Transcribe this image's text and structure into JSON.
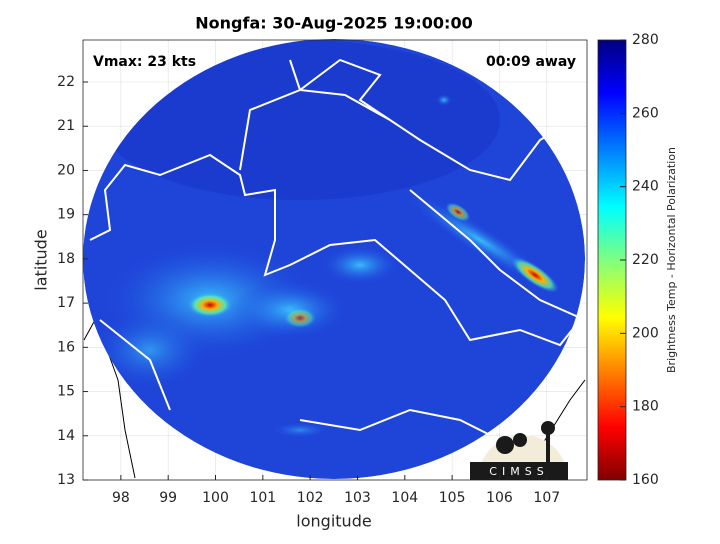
{
  "chart_data": {
    "type": "map",
    "title": "Nongfa: 30-Aug-2025 19:00:00",
    "annotations": [
      "Vmax: 23 kts",
      "00:09 away"
    ],
    "x_label": "longitude",
    "y_label": "latitude",
    "xlim": [
      97.2,
      107.85
    ],
    "xticks": [
      98,
      99,
      100,
      101,
      102,
      103,
      104,
      105,
      106,
      107
    ],
    "ylim": [
      13,
      22.95
    ],
    "yticks": [
      13,
      14,
      15,
      16,
      17,
      18,
      19,
      20,
      21,
      22
    ],
    "grid": true,
    "colorbar": {
      "label": "Brightness Temp - Horizontal Polarization",
      "lim": [
        160,
        280
      ],
      "ticks": [
        160,
        180,
        200,
        220,
        240,
        260,
        280
      ]
    },
    "logo": "CIMSS"
  }
}
